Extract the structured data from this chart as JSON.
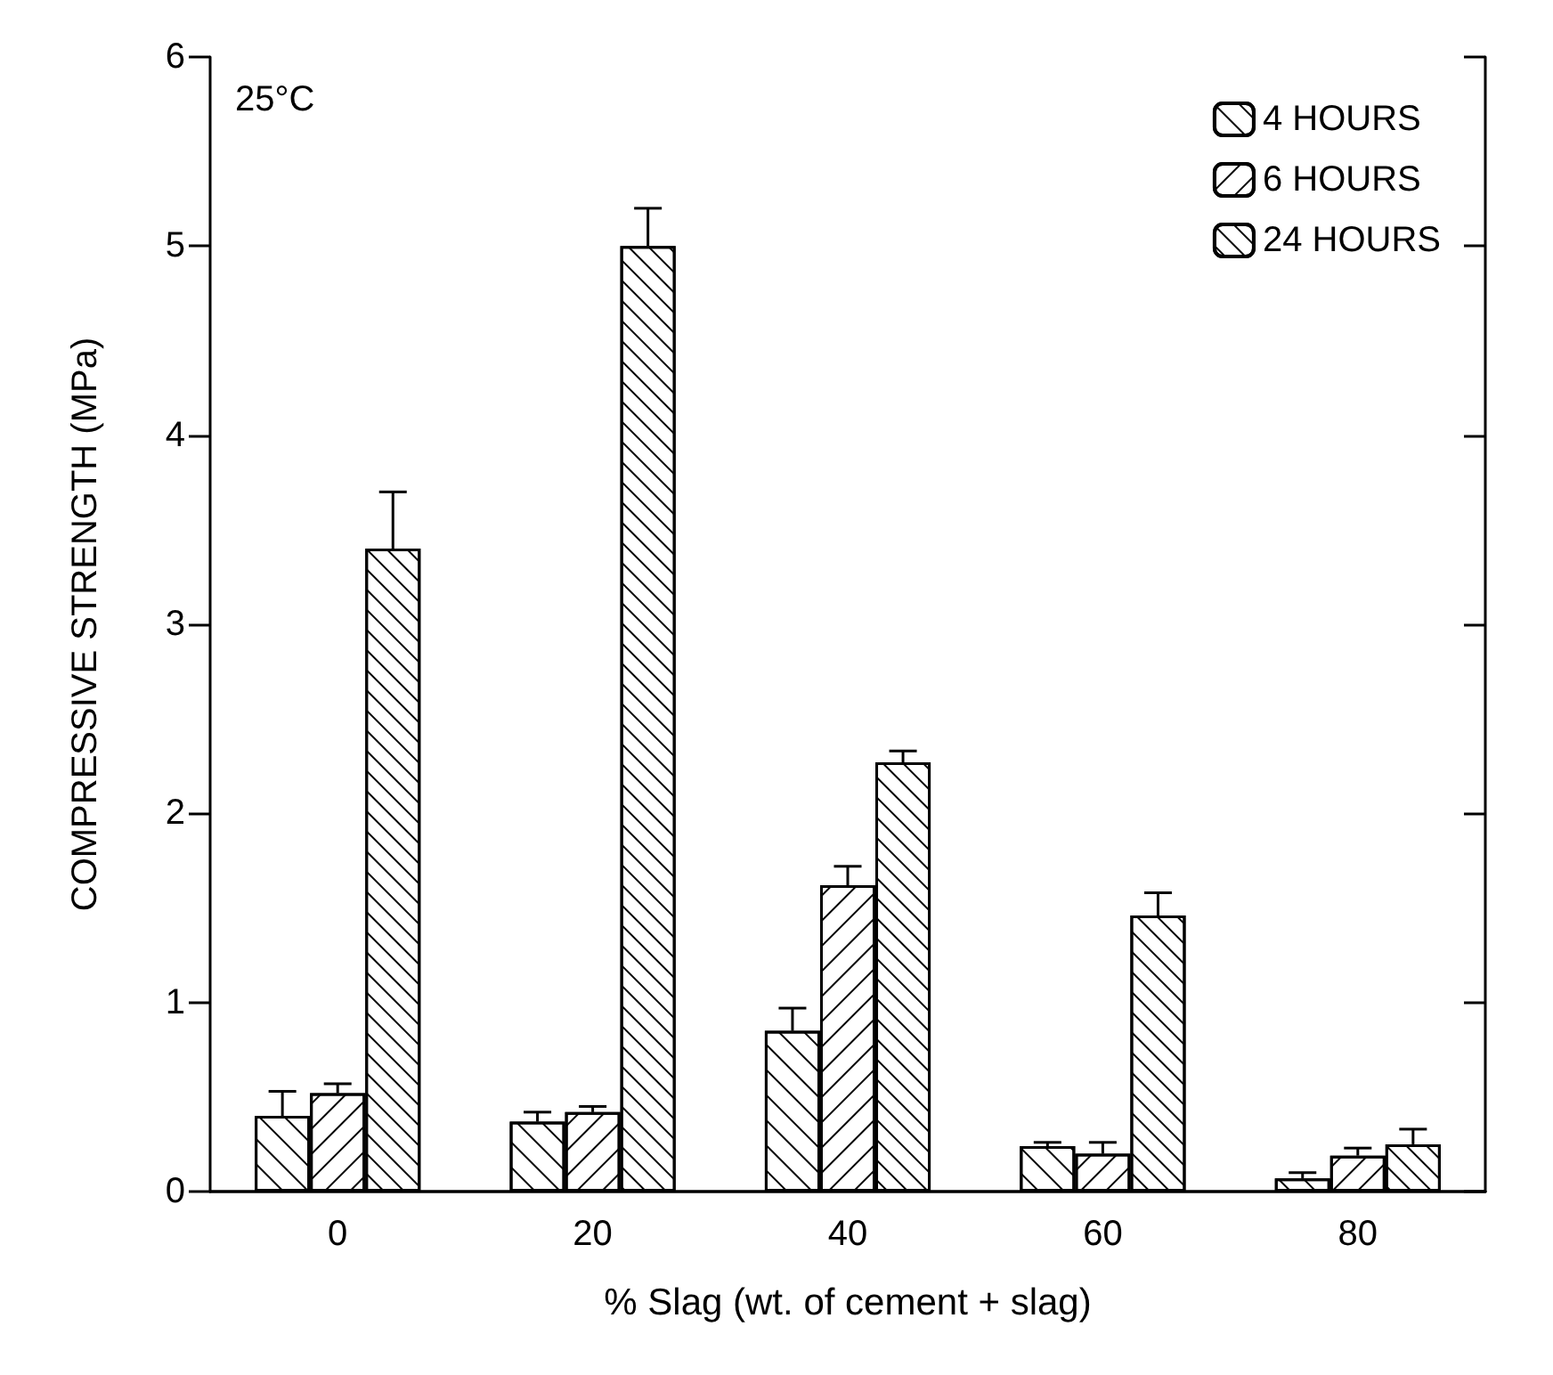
{
  "chart_data": {
    "type": "bar",
    "xlabel": "% Slag (wt. of cement + slag)",
    "ylabel": "COMPRESSIVE STRENGTH (MPa)",
    "categories": [
      "0",
      "20",
      "40",
      "60",
      "80"
    ],
    "series": [
      {
        "name": "4 HOURS",
        "color": "#ffffff",
        "values": [
          0.4,
          0.37,
          0.85,
          0.24,
          0.07
        ],
        "errors": [
          [
            0.4,
            0.53
          ],
          [
            0.37,
            0.42
          ],
          [
            0.85,
            0.97
          ],
          [
            0.24,
            0.26
          ],
          [
            0.07,
            0.1
          ]
        ]
      },
      {
        "name": "6 HOURS",
        "color": "#ffffff",
        "values": [
          0.52,
          0.42,
          1.62,
          0.2,
          0.19
        ],
        "errors": [
          [
            0.52,
            0.57
          ],
          [
            0.42,
            0.45
          ],
          [
            1.62,
            1.72
          ],
          [
            0.2,
            0.26
          ],
          [
            0.19,
            0.23
          ]
        ]
      },
      {
        "name": "24 HOURS",
        "color": "#ffffff",
        "values": [
          3.4,
          5.0,
          2.27,
          1.46,
          0.25
        ],
        "errors": [
          [
            3.4,
            3.7
          ],
          [
            5.0,
            5.2
          ],
          [
            2.27,
            2.33
          ],
          [
            1.46,
            1.58
          ],
          [
            0.25,
            0.33
          ]
        ]
      }
    ],
    "ylim": [
      0,
      6
    ],
    "yticks": [
      0,
      1,
      2,
      3,
      4,
      5,
      6
    ],
    "legend": "top right",
    "grid": false,
    "annotations": [
      "25°C"
    ]
  }
}
